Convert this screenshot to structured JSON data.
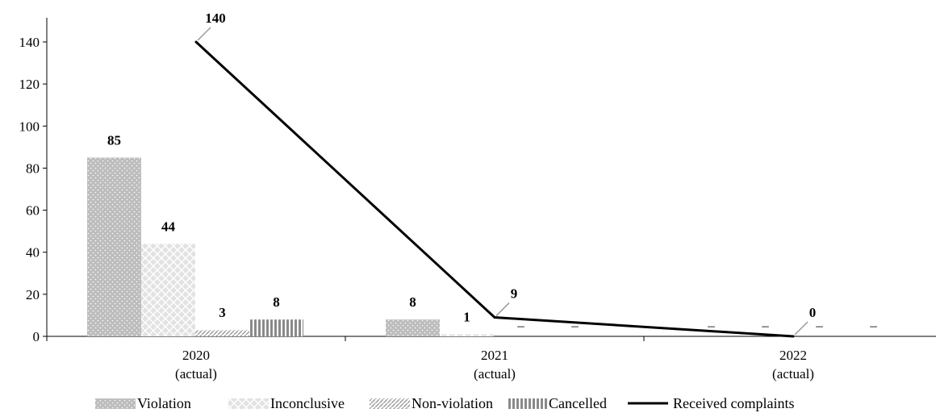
{
  "chart_data": {
    "type": "bar",
    "categories": [
      {
        "year": "2020",
        "note": "(actual)"
      },
      {
        "year": "2021",
        "note": "(actual)"
      },
      {
        "year": "2022",
        "note": "(actual)"
      }
    ],
    "series": [
      {
        "name": "Violation",
        "values": [
          85,
          8,
          null
        ],
        "labels": [
          "85",
          "8",
          "–"
        ],
        "pattern": "dots"
      },
      {
        "name": "Inconclusive",
        "values": [
          44,
          1,
          null
        ],
        "labels": [
          "44",
          "1",
          "–"
        ],
        "pattern": "diamonds"
      },
      {
        "name": "Non-violation",
        "values": [
          3,
          null,
          null
        ],
        "labels": [
          "3",
          "–",
          "–"
        ],
        "pattern": "diagonal"
      },
      {
        "name": "Cancelled",
        "values": [
          8,
          null,
          null
        ],
        "labels": [
          "8",
          "–",
          "–"
        ],
        "pattern": "vertical"
      }
    ],
    "line_series": {
      "name": "Received complaints",
      "values": [
        140,
        9,
        0
      ],
      "labels": [
        "140",
        "9",
        "0"
      ]
    },
    "yticks": [
      "0",
      "20",
      "40",
      "60",
      "80",
      "100",
      "120",
      "140"
    ],
    "ylim": [
      0,
      140
    ],
    "legend_position": "bottom",
    "colors": {
      "bar_fill": "#bdbdbd",
      "line": "#000000",
      "axis": "#000000"
    }
  }
}
